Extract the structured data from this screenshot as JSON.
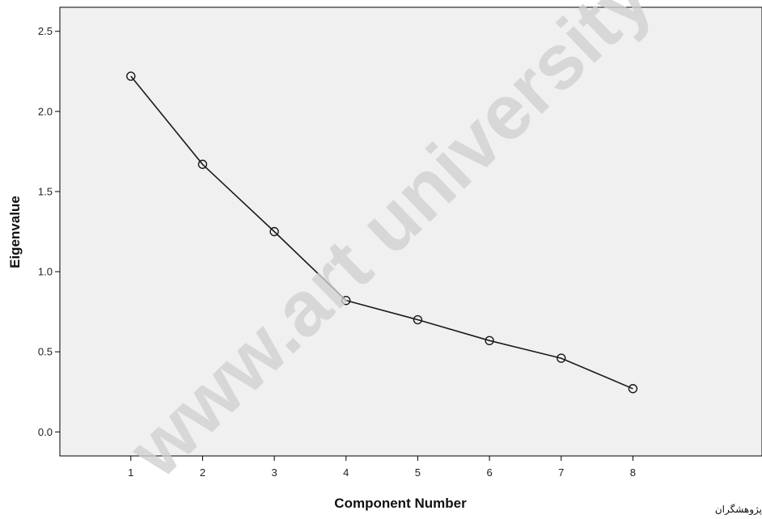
{
  "chart_data": {
    "type": "line",
    "xlabel": "Component Number",
    "ylabel": "Eigenvalue",
    "x": [
      1,
      2,
      3,
      4,
      5,
      6,
      7,
      8
    ],
    "series": [
      {
        "values": [
          2.22,
          1.67,
          1.25,
          0.82,
          0.7,
          0.57,
          0.46,
          0.27
        ]
      }
    ],
    "xticks": [
      "1",
      "2",
      "3",
      "4",
      "5",
      "6",
      "7",
      "8"
    ],
    "yticks": [
      "0.0",
      "0.5",
      "1.0",
      "1.5",
      "2.0",
      "2.5"
    ],
    "ylim": [
      -0.15,
      2.65
    ],
    "xlim": [
      0.01,
      9.8
    ],
    "grid": false,
    "marker": "open-circle",
    "colors": {
      "plot_background": "#f0f0f0",
      "line": "#1a1a1a",
      "axis": "#000000"
    }
  },
  "watermark": "www.art university",
  "corner_note": "پژوهشگران"
}
